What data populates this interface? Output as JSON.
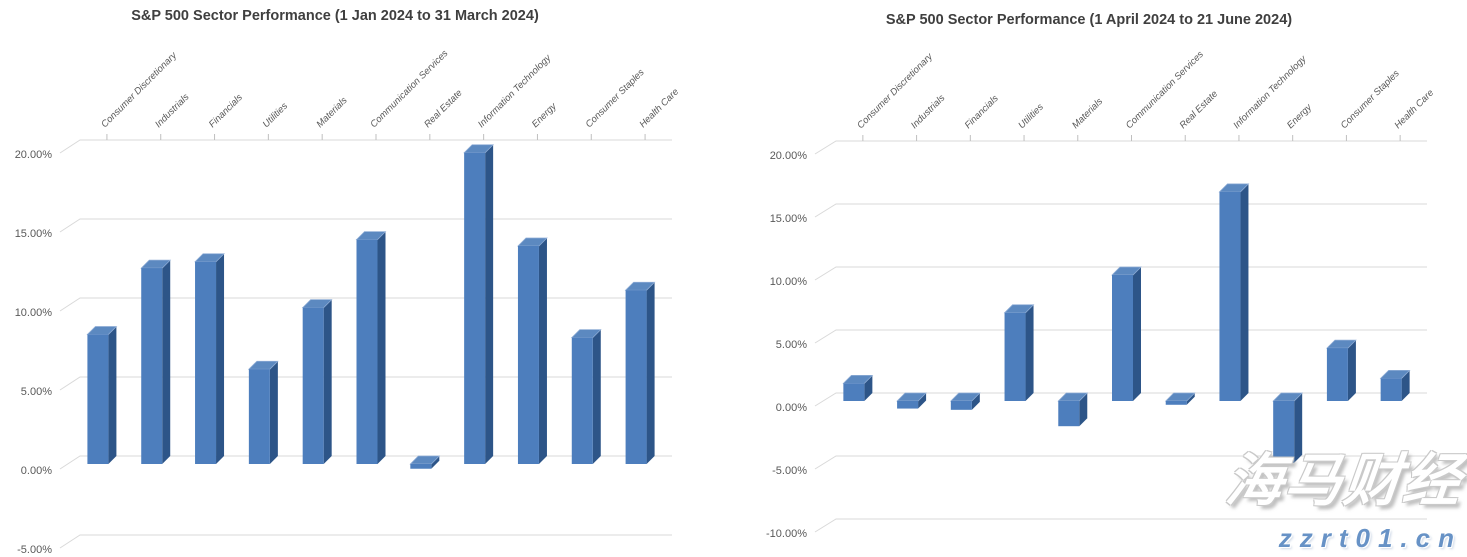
{
  "page": {
    "background": "#ffffff"
  },
  "colors": {
    "bar_front": "#4d7ebd",
    "bar_side": "#2d5588",
    "bar_top": "#5c89c0",
    "bar_top_edge": "#8fadd6",
    "gridline": "#d9d9d9",
    "axis_tick_mark": "#bfbfbf",
    "axis_text": "#595959",
    "title_text": "#3f3f3f",
    "watermark_url_color": "#6792c6"
  },
  "watermark": {
    "line1": "海马财经",
    "line2": "zzrt01.cn"
  },
  "chart_data": [
    {
      "type": "bar",
      "style": "3d-column",
      "title": "S&P 500 Sector Performance (1 Jan 2024 to 31 March 2024)",
      "categories": [
        "Consumer Discretionary",
        "Industrials",
        "Financials",
        "Utilities",
        "Materials",
        "Communication Services",
        "Real Estate",
        "Information Technology",
        "Energy",
        "Consumer Staples",
        "Health Care"
      ],
      "values": [
        8.2,
        12.4,
        12.8,
        6.0,
        9.9,
        14.2,
        -0.3,
        19.7,
        13.8,
        8.0,
        11.0
      ],
      "value_unit": "%",
      "xlabel": "",
      "ylabel": "",
      "ylim": [
        -5,
        20
      ],
      "ytick_step": 5,
      "ytick_labels": [
        "20.00%",
        "15.00%",
        "10.00%",
        "5.00%",
        "0.00%",
        "-5.00%"
      ],
      "grid": true,
      "legend": false,
      "category_labels_position": "top-rotated-45deg"
    },
    {
      "type": "bar",
      "style": "3d-column",
      "title": "S&P 500 Sector Performance (1 April 2024 to 21 June 2024)",
      "categories": [
        "Consumer Discretionary",
        "Industrials",
        "Financials",
        "Utilities",
        "Materials",
        "Communication Services",
        "Real Estate",
        "Information Technology",
        "Energy",
        "Consumer Staples",
        "Health Care"
      ],
      "values": [
        1.4,
        -0.6,
        -0.7,
        7.0,
        -2.0,
        10.0,
        -0.3,
        16.6,
        -4.9,
        4.2,
        1.8
      ],
      "value_unit": "%",
      "xlabel": "",
      "ylabel": "",
      "ylim": [
        -10,
        20
      ],
      "ytick_step": 5,
      "ytick_labels": [
        "20.00%",
        "15.00%",
        "10.00%",
        "5.00%",
        "0.00%",
        "-5.00%",
        "-10.00%"
      ],
      "grid": true,
      "legend": false,
      "category_labels_position": "top-rotated-45deg"
    }
  ]
}
